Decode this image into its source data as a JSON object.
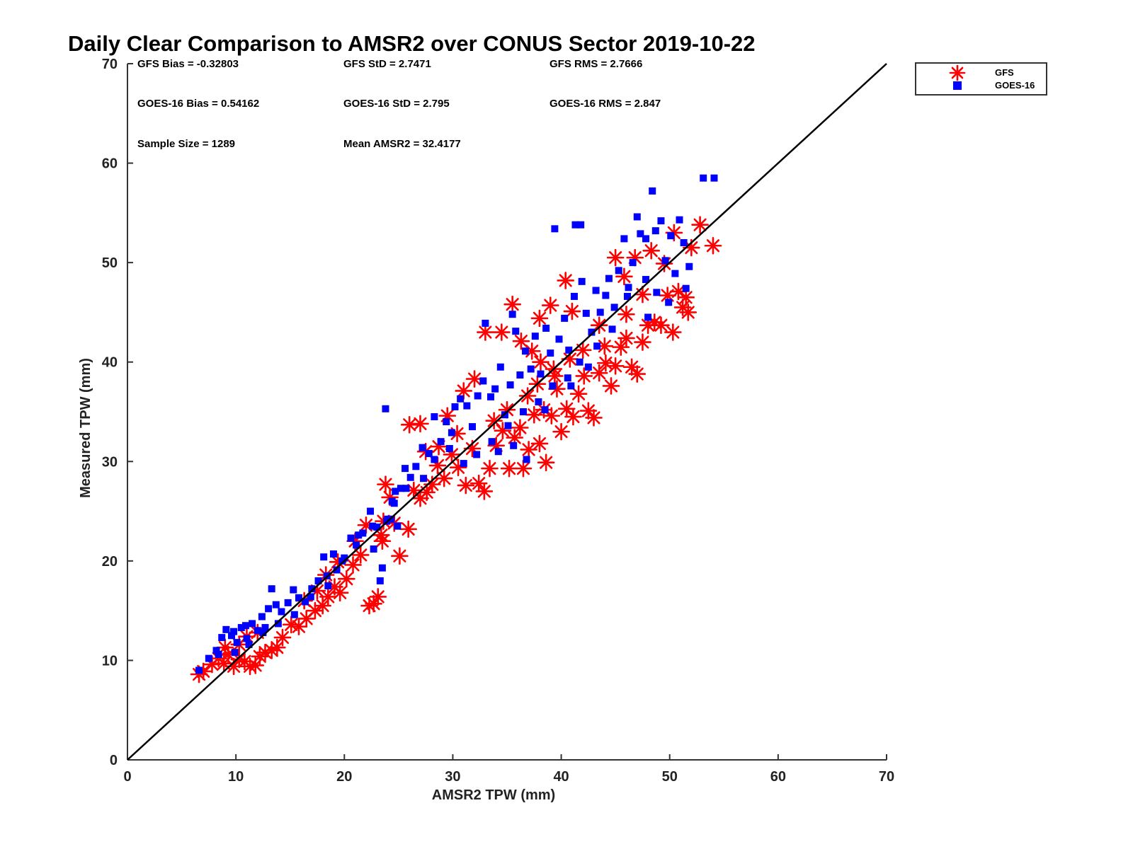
{
  "chart_data": {
    "type": "scatter",
    "title": "Daily Clear Comparison to AMSR2 over CONUS Sector 2019-10-22",
    "xlabel": "AMSR2 TPW (mm)",
    "ylabel": "Measured TPW (mm)",
    "xlim": [
      0,
      70
    ],
    "ylim": [
      0,
      70
    ],
    "xticks": [
      "0",
      "10",
      "20",
      "30",
      "40",
      "50",
      "60",
      "70"
    ],
    "yticks": [
      "0",
      "10",
      "20",
      "30",
      "40",
      "50",
      "60",
      "70"
    ],
    "grid": false,
    "legend_position": "outside-top-right",
    "reference_line": {
      "x": [
        0,
        70
      ],
      "y": [
        0,
        70
      ],
      "color": "#000000"
    },
    "stats": {
      "gfs_bias": "GFS Bias = -0.32803",
      "gfs_std": "GFS StD = 2.7471",
      "gfs_rms": "GFS RMS = 2.7666",
      "goes_bias": "GOES-16 Bias = 0.54162",
      "goes_std": "GOES-16 StD = 2.795",
      "goes_rms": "GOES-16 RMS = 2.847",
      "sample_size": "Sample Size = 1289",
      "mean_amsr2": "Mean AMSR2 = 32.4177"
    },
    "series": [
      {
        "name": "GFS",
        "marker": "asterisk",
        "color": "#ff0000",
        "points": [
          [
            6.6,
            8.6
          ],
          [
            7.0,
            8.9
          ],
          [
            7.8,
            9.6
          ],
          [
            8.4,
            10.2
          ],
          [
            8.9,
            9.7
          ],
          [
            9.3,
            10.6
          ],
          [
            9.8,
            9.4
          ],
          [
            10.3,
            10.1
          ],
          [
            10.8,
            9.9
          ],
          [
            11.3,
            9.4
          ],
          [
            11.8,
            9.5
          ],
          [
            12.2,
            10.4
          ],
          [
            12.7,
            10.8
          ],
          [
            13.3,
            11.0
          ],
          [
            13.8,
            11.3
          ],
          [
            14.3,
            12.3
          ],
          [
            15.1,
            13.6
          ],
          [
            15.8,
            13.4
          ],
          [
            16.5,
            14.2
          ],
          [
            17.3,
            15.0
          ],
          [
            18.0,
            15.5
          ],
          [
            18.5,
            16.4
          ],
          [
            19.1,
            17.4
          ],
          [
            19.6,
            16.8
          ],
          [
            20.2,
            18.2
          ],
          [
            20.8,
            19.6
          ],
          [
            21.5,
            20.6
          ],
          [
            22.3,
            15.5
          ],
          [
            22.7,
            15.7
          ],
          [
            23.1,
            16.4
          ],
          [
            23.4,
            22.6
          ],
          [
            23.6,
            24.0
          ],
          [
            23.8,
            27.7
          ],
          [
            24.2,
            26.4
          ],
          [
            24.6,
            23.8
          ],
          [
            25.1,
            20.5
          ],
          [
            25.9,
            23.2
          ],
          [
            26.4,
            27.1
          ],
          [
            27.0,
            26.3
          ],
          [
            27.6,
            26.9
          ],
          [
            28.1,
            27.7
          ],
          [
            28.6,
            29.6
          ],
          [
            29.2,
            28.3
          ],
          [
            29.9,
            30.7
          ],
          [
            30.5,
            29.4
          ],
          [
            31.2,
            27.6
          ],
          [
            31.8,
            31.3
          ],
          [
            32.4,
            27.8
          ],
          [
            32.9,
            27.0
          ],
          [
            33.4,
            29.3
          ],
          [
            34.0,
            31.6
          ],
          [
            34.6,
            33.1
          ],
          [
            35.2,
            29.3
          ],
          [
            35.7,
            32.4
          ],
          [
            36.2,
            33.4
          ],
          [
            36.5,
            29.3
          ],
          [
            37.0,
            31.2
          ],
          [
            37.5,
            34.7
          ],
          [
            38.0,
            31.8
          ],
          [
            38.4,
            35.2
          ],
          [
            38.6,
            29.9
          ],
          [
            39.1,
            34.6
          ],
          [
            39.6,
            37.3
          ],
          [
            40.0,
            33.0
          ],
          [
            40.5,
            35.3
          ],
          [
            41.1,
            34.5
          ],
          [
            41.6,
            36.8
          ],
          [
            42.1,
            38.6
          ],
          [
            42.5,
            35.1
          ],
          [
            43.0,
            34.4
          ],
          [
            43.5,
            38.9
          ],
          [
            44.1,
            39.9
          ],
          [
            44.6,
            37.6
          ],
          [
            45.0,
            39.6
          ],
          [
            45.5,
            41.5
          ],
          [
            46.0,
            42.4
          ],
          [
            46.5,
            39.5
          ],
          [
            47.0,
            38.8
          ],
          [
            47.5,
            42.0
          ],
          [
            48.0,
            43.7
          ],
          [
            48.6,
            44.0
          ],
          [
            49.2,
            43.7
          ],
          [
            49.8,
            46.7
          ],
          [
            50.3,
            43.0
          ],
          [
            50.8,
            47.1
          ],
          [
            51.2,
            45.5
          ],
          [
            51.5,
            46.5
          ],
          [
            51.7,
            45.0
          ],
          [
            52.0,
            51.5
          ],
          [
            52.8,
            53.8
          ],
          [
            54.0,
            51.7
          ],
          [
            44.0,
            41.6
          ],
          [
            43.5,
            43.7
          ],
          [
            46.0,
            44.8
          ],
          [
            47.5,
            46.8
          ],
          [
            49.5,
            49.9
          ],
          [
            50.4,
            53.0
          ],
          [
            40.4,
            48.2
          ],
          [
            35.5,
            45.8
          ],
          [
            34.5,
            43.0
          ],
          [
            33.0,
            43.0
          ],
          [
            38.0,
            44.4
          ],
          [
            39.0,
            45.7
          ],
          [
            41.0,
            45.1
          ],
          [
            32.0,
            38.3
          ],
          [
            31.0,
            37.1
          ],
          [
            27.0,
            33.8
          ],
          [
            26.0,
            33.7
          ],
          [
            29.5,
            34.6
          ],
          [
            30.4,
            32.8
          ],
          [
            28.7,
            31.5
          ],
          [
            27.5,
            31.0
          ],
          [
            36.3,
            42.1
          ],
          [
            37.3,
            41.1
          ],
          [
            38.1,
            40.0
          ],
          [
            39.3,
            39.3
          ],
          [
            40.8,
            40.3
          ],
          [
            42.0,
            41.2
          ],
          [
            45.8,
            48.6
          ],
          [
            46.8,
            50.5
          ],
          [
            48.3,
            51.2
          ],
          [
            45.0,
            50.5
          ],
          [
            33.8,
            34.1
          ],
          [
            35.0,
            35.2
          ],
          [
            36.9,
            36.6
          ],
          [
            37.8,
            37.8
          ],
          [
            39.4,
            38.6
          ],
          [
            22.0,
            23.6
          ],
          [
            23.5,
            22.0
          ],
          [
            21.0,
            22.0
          ],
          [
            18.3,
            18.6
          ],
          [
            17.5,
            17.0
          ],
          [
            16.3,
            16.0
          ],
          [
            19.4,
            19.9
          ],
          [
            11.0,
            12.4
          ],
          [
            12.0,
            12.8
          ],
          [
            10.3,
            11.6
          ],
          [
            9.0,
            11.3
          ]
        ]
      },
      {
        "name": "GOES-16",
        "marker": "square",
        "color": "#0000ff",
        "points": [
          [
            6.6,
            9.0
          ],
          [
            7.5,
            10.2
          ],
          [
            8.2,
            11.0
          ],
          [
            8.7,
            12.3
          ],
          [
            9.1,
            13.1
          ],
          [
            9.6,
            12.5
          ],
          [
            10.1,
            11.8
          ],
          [
            10.5,
            13.3
          ],
          [
            11.0,
            12.2
          ],
          [
            11.5,
            13.7
          ],
          [
            12.0,
            13.0
          ],
          [
            12.4,
            14.4
          ],
          [
            12.7,
            13.3
          ],
          [
            13.0,
            15.2
          ],
          [
            13.3,
            17.2
          ],
          [
            13.7,
            15.6
          ],
          [
            14.2,
            14.9
          ],
          [
            14.8,
            15.8
          ],
          [
            15.3,
            17.1
          ],
          [
            15.8,
            16.3
          ],
          [
            16.4,
            15.9
          ],
          [
            17.0,
            17.2
          ],
          [
            17.6,
            18.0
          ],
          [
            18.1,
            20.4
          ],
          [
            18.5,
            17.5
          ],
          [
            19.0,
            20.7
          ],
          [
            19.3,
            19.1
          ],
          [
            20.0,
            20.3
          ],
          [
            20.6,
            22.3
          ],
          [
            21.1,
            21.6
          ],
          [
            21.7,
            22.8
          ],
          [
            22.4,
            25.0
          ],
          [
            22.7,
            21.2
          ],
          [
            23.0,
            23.4
          ],
          [
            23.3,
            18.0
          ],
          [
            23.5,
            19.3
          ],
          [
            23.8,
            35.3
          ],
          [
            24.0,
            24.2
          ],
          [
            24.4,
            26.0
          ],
          [
            24.7,
            27.0
          ],
          [
            25.2,
            27.3
          ],
          [
            25.6,
            29.3
          ],
          [
            26.1,
            28.4
          ],
          [
            26.6,
            29.5
          ],
          [
            27.2,
            31.4
          ],
          [
            27.8,
            30.8
          ],
          [
            28.3,
            34.5
          ],
          [
            28.9,
            32.0
          ],
          [
            29.4,
            34.0
          ],
          [
            29.9,
            32.9
          ],
          [
            30.2,
            35.5
          ],
          [
            30.7,
            36.3
          ],
          [
            31.3,
            35.6
          ],
          [
            31.8,
            33.5
          ],
          [
            32.3,
            36.6
          ],
          [
            32.8,
            38.1
          ],
          [
            33.0,
            43.9
          ],
          [
            33.5,
            36.5
          ],
          [
            33.9,
            37.3
          ],
          [
            34.4,
            39.5
          ],
          [
            34.8,
            34.7
          ],
          [
            35.3,
            37.7
          ],
          [
            35.8,
            43.1
          ],
          [
            35.5,
            44.8
          ],
          [
            36.2,
            38.7
          ],
          [
            36.7,
            41.1
          ],
          [
            37.2,
            39.3
          ],
          [
            37.6,
            42.6
          ],
          [
            38.1,
            38.8
          ],
          [
            38.6,
            43.4
          ],
          [
            39.0,
            40.9
          ],
          [
            39.4,
            53.4
          ],
          [
            39.8,
            42.3
          ],
          [
            40.3,
            44.4
          ],
          [
            40.7,
            41.2
          ],
          [
            41.2,
            46.6
          ],
          [
            41.3,
            53.8
          ],
          [
            41.8,
            53.8
          ],
          [
            41.9,
            48.1
          ],
          [
            42.3,
            44.9
          ],
          [
            42.8,
            43.0
          ],
          [
            43.2,
            47.2
          ],
          [
            43.6,
            45.0
          ],
          [
            44.1,
            46.7
          ],
          [
            44.4,
            48.4
          ],
          [
            44.9,
            45.5
          ],
          [
            45.3,
            49.2
          ],
          [
            45.8,
            52.4
          ],
          [
            46.2,
            47.5
          ],
          [
            46.6,
            50.0
          ],
          [
            47.0,
            54.6
          ],
          [
            47.3,
            52.9
          ],
          [
            47.8,
            52.4
          ],
          [
            48.4,
            57.2
          ],
          [
            48.7,
            53.2
          ],
          [
            49.2,
            54.2
          ],
          [
            49.6,
            50.2
          ],
          [
            50.1,
            52.7
          ],
          [
            50.5,
            48.9
          ],
          [
            50.9,
            54.3
          ],
          [
            51.3,
            52.0
          ],
          [
            51.5,
            47.4
          ],
          [
            51.8,
            49.6
          ],
          [
            53.1,
            58.5
          ],
          [
            54.1,
            58.5
          ],
          [
            47.8,
            48.3
          ],
          [
            46.1,
            46.6
          ],
          [
            44.7,
            43.3
          ],
          [
            43.3,
            41.6
          ],
          [
            41.7,
            40.0
          ],
          [
            40.6,
            38.4
          ],
          [
            39.2,
            37.6
          ],
          [
            37.9,
            36.0
          ],
          [
            36.5,
            35.0
          ],
          [
            35.1,
            33.6
          ],
          [
            33.6,
            32.0
          ],
          [
            32.2,
            30.7
          ],
          [
            31.0,
            29.8
          ],
          [
            29.7,
            31.3
          ],
          [
            28.3,
            30.2
          ],
          [
            27.3,
            28.3
          ],
          [
            25.7,
            27.3
          ],
          [
            24.6,
            25.8
          ],
          [
            22.6,
            23.5
          ],
          [
            21.3,
            22.6
          ],
          [
            19.8,
            20.0
          ],
          [
            18.4,
            18.5
          ],
          [
            16.9,
            16.4
          ],
          [
            15.4,
            14.6
          ],
          [
            13.9,
            13.7
          ],
          [
            12.5,
            12.8
          ],
          [
            11.2,
            11.6
          ],
          [
            9.9,
            10.8
          ],
          [
            8.4,
            10.6
          ],
          [
            9.8,
            12.9
          ],
          [
            10.9,
            13.5
          ],
          [
            34.2,
            31.0
          ],
          [
            35.6,
            31.6
          ],
          [
            36.8,
            30.2
          ],
          [
            23.9,
            24.0
          ],
          [
            24.9,
            23.5
          ],
          [
            24.3,
            24.2
          ],
          [
            48.8,
            47.0
          ],
          [
            49.9,
            46.0
          ],
          [
            48.0,
            44.5
          ],
          [
            42.5,
            39.5
          ],
          [
            40.9,
            37.6
          ],
          [
            38.5,
            35.2
          ]
        ]
      }
    ]
  }
}
